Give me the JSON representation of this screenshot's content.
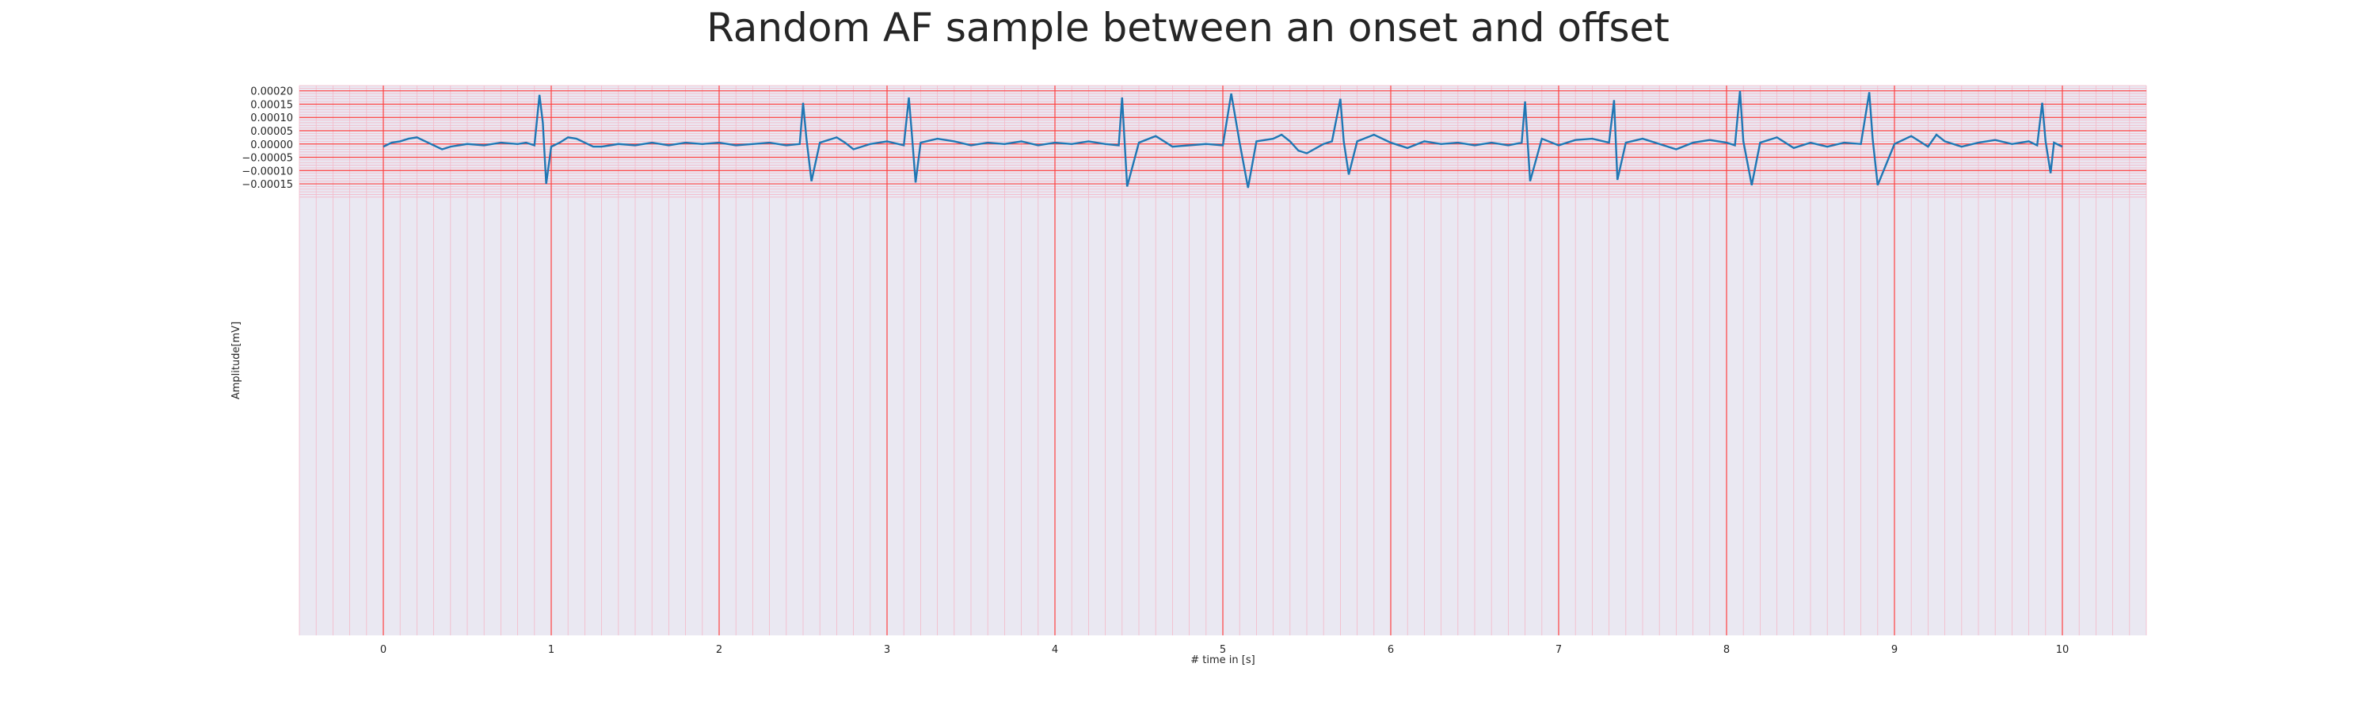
{
  "chart_data": {
    "type": "line",
    "title": "Random AF sample between an onset and offset",
    "xlabel": "# time in [s]",
    "ylabel": "Amplitude[mV]",
    "xlim": [
      -0.5,
      10.5
    ],
    "ylim": [
      -0.00185,
      0.00022
    ],
    "xticks": [
      0,
      1,
      2,
      3,
      4,
      5,
      6,
      7,
      8,
      9,
      10
    ],
    "xtick_labels": [
      "0",
      "1",
      "2",
      "3",
      "4",
      "5",
      "6",
      "7",
      "8",
      "9",
      "10"
    ],
    "yticks": [
      0.0002,
      0.00015,
      0.0001,
      5e-05,
      0.0,
      -5e-05,
      -0.0001,
      -0.00015
    ],
    "ytick_labels": [
      "0.00020",
      "0.00015",
      "0.00010",
      "0.00005",
      "0.00000",
      "−0.00005",
      "−0.00010",
      "−0.00015"
    ],
    "grid": true,
    "grid_major_color": "#ff4040",
    "grid_minor_color": "#f4b8c8",
    "background_color": "#eae8f2",
    "line_color": "#1f77b4",
    "series": [
      {
        "x": [
          0,
          0.05,
          0.1,
          0.15,
          0.2,
          0.25,
          0.3,
          0.35,
          0.4,
          0.5,
          0.6,
          0.7,
          0.8,
          0.85,
          0.9,
          0.93,
          0.95,
          0.97,
          1.0,
          1.05,
          1.1,
          1.15,
          1.2,
          1.25,
          1.3,
          1.4,
          1.5,
          1.6,
          1.7,
          1.8,
          1.9,
          2.0,
          2.1,
          2.2,
          2.3,
          2.4,
          2.48,
          2.5,
          2.52,
          2.55,
          2.6,
          2.7,
          2.75,
          2.8,
          2.9,
          3.0,
          3.1,
          3.13,
          3.15,
          3.17,
          3.2,
          3.3,
          3.4,
          3.5,
          3.6,
          3.7,
          3.8,
          3.9,
          4.0,
          4.1,
          4.2,
          4.3,
          4.38,
          4.4,
          4.43,
          4.5,
          4.6,
          4.65,
          4.7,
          4.8,
          4.9,
          5.0,
          5.05,
          5.1,
          5.15,
          5.2,
          5.3,
          5.35,
          5.4,
          5.45,
          5.5,
          5.6,
          5.65,
          5.7,
          5.72,
          5.75,
          5.8,
          5.9,
          6.0,
          6.1,
          6.2,
          6.3,
          6.4,
          6.5,
          6.6,
          6.7,
          6.78,
          6.8,
          6.83,
          6.9,
          7.0,
          7.1,
          7.2,
          7.3,
          7.33,
          7.35,
          7.4,
          7.5,
          7.6,
          7.7,
          7.8,
          7.9,
          8.0,
          8.05,
          8.08,
          8.1,
          8.15,
          8.2,
          8.3,
          8.4,
          8.5,
          8.6,
          8.7,
          8.8,
          8.85,
          8.87,
          8.9,
          9.0,
          9.1,
          9.2,
          9.25,
          9.3,
          9.4,
          9.5,
          9.6,
          9.7,
          9.8,
          9.85,
          9.88,
          9.9,
          9.93,
          9.95,
          10.0
        ],
        "y": [
          -1e-05,
          5e-06,
          1e-05,
          2e-05,
          2.5e-05,
          1e-05,
          -5e-06,
          -2e-05,
          -1e-05,
          0.0,
          -5e-06,
          5e-06,
          0.0,
          5e-06,
          -5e-06,
          0.000185,
          8e-05,
          -0.00015,
          -1e-05,
          5e-06,
          2.5e-05,
          2e-05,
          5e-06,
          -1e-05,
          -1e-05,
          0.0,
          -5e-06,
          5e-06,
          -5e-06,
          5e-06,
          0.0,
          5e-06,
          -5e-06,
          0.0,
          5e-06,
          -5e-06,
          0.0,
          0.000155,
          2e-05,
          -0.00014,
          5e-06,
          2.5e-05,
          5e-06,
          -2e-05,
          0.0,
          1e-05,
          -5e-06,
          0.000175,
          2e-05,
          -0.000145,
          5e-06,
          2e-05,
          1e-05,
          -5e-06,
          5e-06,
          0.0,
          1e-05,
          -5e-06,
          5e-06,
          0.0,
          1e-05,
          0.0,
          -5e-06,
          0.000175,
          -0.00016,
          5e-06,
          3e-05,
          1e-05,
          -1e-05,
          -5e-06,
          0.0,
          -5e-06,
          0.00019,
          5e-06,
          -0.000165,
          1e-05,
          2e-05,
          3.5e-05,
          1e-05,
          -2.5e-05,
          -3.5e-05,
          0.0,
          1e-05,
          0.00017,
          1e-05,
          -0.000115,
          1e-05,
          3.5e-05,
          5e-06,
          -1.5e-05,
          1e-05,
          0.0,
          5e-06,
          -5e-06,
          5e-06,
          -5e-06,
          5e-06,
          0.00016,
          -0.00014,
          2e-05,
          -5e-06,
          1.5e-05,
          2e-05,
          5e-06,
          0.000165,
          -0.000135,
          5e-06,
          2e-05,
          0.0,
          -2e-05,
          5e-06,
          1.5e-05,
          5e-06,
          -5e-06,
          0.0002,
          1e-05,
          -0.000155,
          5e-06,
          2.5e-05,
          -1.5e-05,
          5e-06,
          -1e-05,
          5e-06,
          0.0,
          0.000195,
          2e-05,
          -0.000155,
          0.0,
          3e-05,
          -1e-05,
          3.5e-05,
          1e-05,
          -1e-05,
          5e-06,
          1.5e-05,
          0.0,
          1e-05,
          -5e-06,
          0.000155,
          1e-05,
          -0.00011,
          5e-06,
          -1e-05
        ]
      }
    ]
  }
}
